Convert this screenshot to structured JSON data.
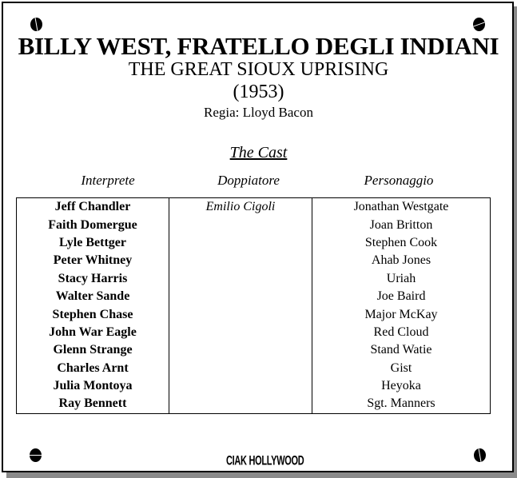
{
  "title": "BILLY WEST, FRATELLO DEGLI INDIANI",
  "original_title": "THE GREAT SIOUX UPRISING",
  "year": "(1953)",
  "director": "Regia: Lloyd Bacon",
  "cast_heading": "The Cast",
  "columns": {
    "actor": "Interprete",
    "dubber": "Doppiatore",
    "character": "Personaggio"
  },
  "rows": [
    {
      "actor": "Jeff Chandler",
      "dubber": "Emilio Cigoli",
      "character": "Jonathan Westgate"
    },
    {
      "actor": "Faith Domergue",
      "dubber": "",
      "character": "Joan Britton"
    },
    {
      "actor": "Lyle Bettger",
      "dubber": "",
      "character": "Stephen Cook"
    },
    {
      "actor": "Peter Whitney",
      "dubber": "",
      "character": "Ahab Jones"
    },
    {
      "actor": "Stacy Harris",
      "dubber": "",
      "character": "Uriah"
    },
    {
      "actor": "Walter Sande",
      "dubber": "",
      "character": "Joe Baird"
    },
    {
      "actor": "Stephen Chase",
      "dubber": "",
      "character": "Major McKay"
    },
    {
      "actor": "John War Eagle",
      "dubber": "",
      "character": "Red Cloud"
    },
    {
      "actor": "Glenn Strange",
      "dubber": "",
      "character": "Stand Watie"
    },
    {
      "actor": "Charles Arnt",
      "dubber": "",
      "character": "Gist"
    },
    {
      "actor": "Julia Montoya",
      "dubber": "",
      "character": "Heyoka"
    },
    {
      "actor": "Ray Bennett",
      "dubber": "",
      "character": "Sgt. Manners"
    }
  ],
  "logo": "CIAK HOLLYWOOD"
}
